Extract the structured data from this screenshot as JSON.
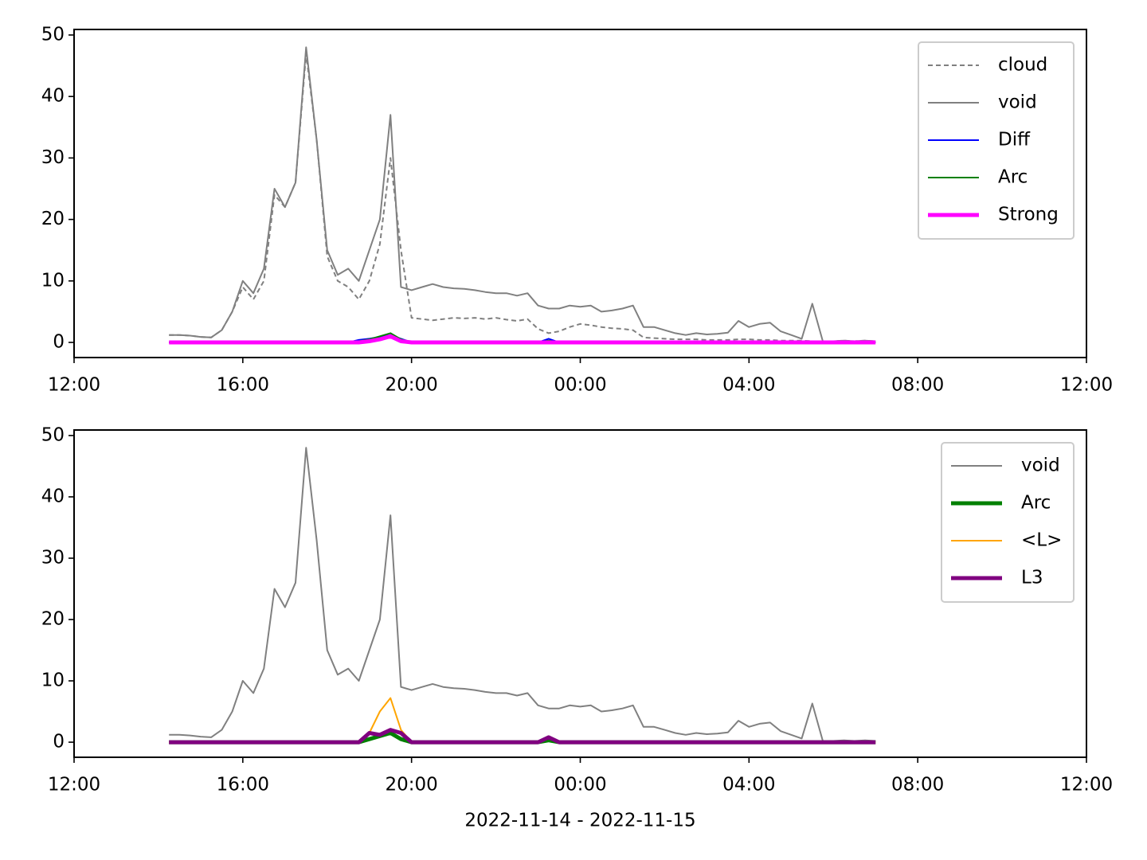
{
  "chart_data": [
    {
      "type": "line",
      "x": [
        14.25,
        14.5,
        14.75,
        15.0,
        15.25,
        15.5,
        15.75,
        16.0,
        16.25,
        16.5,
        16.75,
        17.0,
        17.25,
        17.5,
        17.75,
        18.0,
        18.25,
        18.5,
        18.75,
        19.0,
        19.25,
        19.5,
        19.75,
        20.0,
        20.25,
        20.5,
        20.75,
        21.0,
        21.25,
        21.5,
        21.75,
        22.0,
        22.25,
        22.5,
        22.75,
        23.0,
        23.25,
        23.5,
        23.75,
        24.0,
        24.25,
        24.5,
        24.75,
        25.0,
        25.25,
        25.5,
        25.75,
        26.0,
        26.25,
        26.5,
        26.75,
        27.0,
        27.25,
        27.5,
        27.75,
        28.0,
        28.25,
        28.5,
        28.75,
        29.0,
        29.25,
        29.5,
        29.75,
        30.0,
        30.25,
        30.5,
        30.75,
        31.0
      ],
      "series": [
        {
          "name": "cloud",
          "color": "#808080",
          "linestyle": "dashed",
          "linewidth": 2,
          "values": [
            1.2,
            1.2,
            1.1,
            0.9,
            0.8,
            2.0,
            5,
            9,
            7,
            10,
            24,
            22,
            26,
            47,
            33,
            14,
            10,
            9,
            7,
            10,
            16,
            30,
            15,
            4,
            3.8,
            3.6,
            3.8,
            4,
            3.9,
            4,
            3.8,
            4,
            3.7,
            3.5,
            3.8,
            2.2,
            1.5,
            1.8,
            2.5,
            3,
            2.8,
            2.5,
            2.3,
            2.2,
            2.0,
            0.8,
            0.7,
            0.6,
            0.5,
            0.5,
            0.5,
            0.4,
            0.4,
            0.4,
            0.5,
            0.5,
            0.4,
            0.4,
            0.3,
            0.3,
            0.3,
            0.2,
            0.2,
            0.2,
            0.3,
            0.2,
            0.3,
            0.2
          ]
        },
        {
          "name": "void",
          "color": "#808080",
          "linestyle": "solid",
          "linewidth": 2,
          "values": [
            1.2,
            1.2,
            1.1,
            0.9,
            0.8,
            2.0,
            5,
            10,
            8,
            12,
            25,
            22,
            26,
            48,
            33,
            15,
            11,
            12,
            10,
            15,
            20,
            37,
            9,
            8.5,
            9,
            9.5,
            9,
            8.8,
            8.7,
            8.5,
            8.2,
            8,
            8,
            7.6,
            8,
            6,
            5.5,
            5.5,
            6,
            5.8,
            6,
            5,
            5.2,
            5.5,
            6,
            2.5,
            2.5,
            2.0,
            1.5,
            1.2,
            1.5,
            1.3,
            1.4,
            1.6,
            3.5,
            2.5,
            3,
            3.2,
            1.8,
            1.2,
            0.6,
            6.3,
            0.2,
            0.2,
            0.3,
            0.2,
            0.3,
            0.2
          ]
        },
        {
          "name": "Diff",
          "color": "#0000ff",
          "linestyle": "solid",
          "linewidth": 2,
          "values": [
            0,
            0,
            0,
            0,
            0,
            0,
            0,
            0,
            0,
            0,
            0,
            0,
            0,
            0,
            0,
            0,
            0,
            0,
            0.4,
            0.6,
            0.9,
            1.2,
            0.6,
            0,
            0,
            0,
            0,
            0,
            0,
            0,
            0,
            0,
            0,
            0,
            0,
            0,
            0.6,
            0,
            0,
            0,
            0,
            0,
            0,
            0,
            0,
            0,
            0,
            0,
            0,
            0,
            0,
            0,
            0,
            0,
            0,
            0,
            0,
            0,
            0,
            0,
            0,
            0,
            0,
            0,
            0,
            0,
            0,
            0
          ]
        },
        {
          "name": "Arc",
          "color": "#008000",
          "linestyle": "solid",
          "linewidth": 2,
          "values": [
            0,
            0,
            0,
            0,
            0,
            0,
            0,
            0,
            0,
            0,
            0,
            0,
            0,
            0,
            0,
            0,
            0,
            0,
            0.2,
            0.5,
            1.0,
            1.5,
            0.5,
            0,
            0,
            0,
            0,
            0,
            0,
            0,
            0,
            0,
            0,
            0,
            0,
            0,
            0.3,
            0,
            0,
            0,
            0,
            0,
            0,
            0,
            0,
            0,
            0,
            0,
            0,
            0,
            0,
            0,
            0,
            0,
            0,
            0,
            0,
            0,
            0,
            0,
            0,
            0,
            0,
            0,
            0,
            0,
            0,
            0
          ]
        },
        {
          "name": "Strong",
          "color": "#ff00ff",
          "linestyle": "solid",
          "linewidth": 5,
          "values": [
            0,
            0,
            0,
            0,
            0,
            0,
            0,
            0,
            0,
            0,
            0,
            0,
            0,
            0,
            0,
            0,
            0,
            0,
            0,
            0.2,
            0.5,
            1.0,
            0.2,
            0,
            0,
            0,
            0,
            0,
            0,
            0,
            0,
            0,
            0,
            0,
            0,
            0,
            0,
            0,
            0,
            0,
            0,
            0,
            0,
            0,
            0,
            0,
            0,
            0,
            0,
            0,
            0,
            0,
            0,
            0,
            0,
            0,
            0,
            0,
            0,
            0,
            0,
            0,
            0,
            0,
            0,
            0,
            0,
            0
          ]
        }
      ],
      "xlim": [
        12,
        36
      ],
      "xticks": [
        {
          "value": 12,
          "label": "12:00"
        },
        {
          "value": 16,
          "label": "16:00"
        },
        {
          "value": 20,
          "label": "20:00"
        },
        {
          "value": 24,
          "label": "00:00"
        },
        {
          "value": 28,
          "label": "04:00"
        },
        {
          "value": 32,
          "label": "08:00"
        },
        {
          "value": 36,
          "label": "12:00"
        }
      ],
      "ylim": [
        -2.46,
        50.9
      ],
      "yticks": [
        0,
        10,
        20,
        30,
        40,
        50
      ],
      "legend": "upper right"
    },
    {
      "type": "line",
      "x": [
        14.25,
        14.5,
        14.75,
        15.0,
        15.25,
        15.5,
        15.75,
        16.0,
        16.25,
        16.5,
        16.75,
        17.0,
        17.25,
        17.5,
        17.75,
        18.0,
        18.25,
        18.5,
        18.75,
        19.0,
        19.25,
        19.5,
        19.75,
        20.0,
        20.25,
        20.5,
        20.75,
        21.0,
        21.25,
        21.5,
        21.75,
        22.0,
        22.25,
        22.5,
        22.75,
        23.0,
        23.25,
        23.5,
        23.75,
        24.0,
        24.25,
        24.5,
        24.75,
        25.0,
        25.25,
        25.5,
        25.75,
        26.0,
        26.25,
        26.5,
        26.75,
        27.0,
        27.25,
        27.5,
        27.75,
        28.0,
        28.25,
        28.5,
        28.75,
        29.0,
        29.25,
        29.5,
        29.75,
        30.0,
        30.25,
        30.5,
        30.75,
        31.0
      ],
      "series": [
        {
          "name": "void",
          "color": "#808080",
          "linestyle": "solid",
          "linewidth": 2,
          "values": [
            1.2,
            1.2,
            1.1,
            0.9,
            0.8,
            2.0,
            5,
            10,
            8,
            12,
            25,
            22,
            26,
            48,
            33,
            15,
            11,
            12,
            10,
            15,
            20,
            37,
            9,
            8.5,
            9,
            9.5,
            9,
            8.8,
            8.7,
            8.5,
            8.2,
            8,
            8,
            7.6,
            8,
            6,
            5.5,
            5.5,
            6,
            5.8,
            6,
            5,
            5.2,
            5.5,
            6,
            2.5,
            2.5,
            2.0,
            1.5,
            1.2,
            1.5,
            1.3,
            1.4,
            1.6,
            3.5,
            2.5,
            3,
            3.2,
            1.8,
            1.2,
            0.6,
            6.3,
            0.2,
            0.2,
            0.3,
            0.2,
            0.3,
            0.2
          ]
        },
        {
          "name": "Arc",
          "color": "#008000",
          "linestyle": "solid",
          "linewidth": 5,
          "values": [
            0,
            0,
            0,
            0,
            0,
            0,
            0,
            0,
            0,
            0,
            0,
            0,
            0,
            0,
            0,
            0,
            0,
            0,
            0,
            0.5,
            1.0,
            1.5,
            0.5,
            0,
            0,
            0,
            0,
            0,
            0,
            0,
            0,
            0,
            0,
            0,
            0,
            0,
            0.3,
            0,
            0,
            0,
            0,
            0,
            0,
            0,
            0,
            0,
            0,
            0,
            0,
            0,
            0,
            0,
            0,
            0,
            0,
            0,
            0,
            0,
            0,
            0,
            0,
            0,
            0,
            0,
            0,
            0,
            0,
            0
          ]
        },
        {
          "name": "<L>",
          "color": "#ffa500",
          "linestyle": "solid",
          "linewidth": 2,
          "values": [
            0,
            0,
            0,
            0,
            0,
            0,
            0,
            0,
            0,
            0,
            0,
            0,
            0,
            0,
            0,
            0,
            0,
            0,
            0,
            1.5,
            5,
            7.2,
            2,
            0,
            0,
            0,
            0,
            0,
            0,
            0,
            0,
            0,
            0,
            0,
            0,
            0,
            0.8,
            0,
            0,
            0,
            0,
            0,
            0,
            0,
            0,
            0,
            0,
            0,
            0,
            0,
            0,
            0,
            0,
            0,
            0,
            0,
            0,
            0,
            0,
            0,
            0,
            0,
            0,
            0,
            0,
            0,
            0,
            0
          ]
        },
        {
          "name": "L3",
          "color": "#800080",
          "linestyle": "solid",
          "linewidth": 5,
          "values": [
            0,
            0,
            0,
            0,
            0,
            0,
            0,
            0,
            0,
            0,
            0,
            0,
            0,
            0,
            0,
            0,
            0,
            0,
            0,
            1.5,
            1.2,
            2,
            1.5,
            0,
            0,
            0,
            0,
            0,
            0,
            0,
            0,
            0,
            0,
            0,
            0,
            0,
            0.8,
            0,
            0,
            0,
            0,
            0,
            0,
            0,
            0,
            0,
            0,
            0,
            0,
            0,
            0,
            0,
            0,
            0,
            0,
            0,
            0,
            0,
            0,
            0,
            0,
            0,
            0,
            0,
            0,
            0,
            0,
            0
          ]
        }
      ],
      "xlim": [
        12,
        36
      ],
      "xticks": [
        {
          "value": 12,
          "label": "12:00"
        },
        {
          "value": 16,
          "label": "16:00"
        },
        {
          "value": 20,
          "label": "20:00"
        },
        {
          "value": 24,
          "label": "00:00"
        },
        {
          "value": 28,
          "label": "04:00"
        },
        {
          "value": 32,
          "label": "08:00"
        },
        {
          "value": 36,
          "label": "12:00"
        }
      ],
      "ylim": [
        -2.46,
        50.9
      ],
      "yticks": [
        0,
        10,
        20,
        30,
        40,
        50
      ],
      "xlabel": "2022-11-14 - 2022-11-15",
      "legend": "upper right"
    }
  ]
}
